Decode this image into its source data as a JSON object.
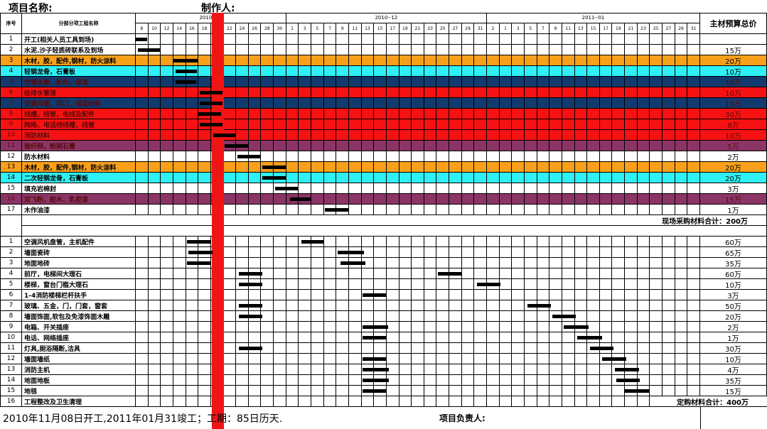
{
  "header": {
    "project_name_label": "项目名称:",
    "author_label": "制作人:",
    "seq_label": "序号",
    "task_label": "分部分项工程名称",
    "price_label": "主材预算总价"
  },
  "months": [
    {
      "label": "2010--11",
      "cols": 12
    },
    {
      "label": "2010--12",
      "cols": 16
    },
    {
      "label": "2011--01",
      "cols": 17
    }
  ],
  "days": [
    "8",
    "10",
    "12",
    "14",
    "16",
    "18",
    "20",
    "22",
    "24",
    "26",
    "28",
    "30",
    "1",
    "3",
    "5",
    "7",
    "9",
    "11",
    "13",
    "15",
    "17",
    "19",
    "21",
    "23",
    "25",
    "27",
    "29",
    "31",
    "2",
    "1",
    "3",
    "5",
    "7",
    "9",
    "11",
    "13",
    "15",
    "17",
    "19",
    "21",
    "23",
    "25",
    "27",
    "29",
    "31"
  ],
  "today_col_day": "20",
  "colors": {
    "white": "#ffffff",
    "orange": "#f9a01b",
    "cyan": "#2ef0f5",
    "navy": "#123a6e",
    "red": "#f61212",
    "purple": "#8c3466",
    "today": "#f01515"
  },
  "section1": [
    {
      "seq": "1",
      "name": "开工(相关人员工具到场)",
      "color": "white",
      "price": "",
      "bars": [
        [
          0,
          0.9
        ]
      ]
    },
    {
      "seq": "2",
      "name": "水泥.沙子轻质砖联系及到场",
      "color": "white",
      "price": "15万",
      "bars": [
        [
          0.15,
          2
        ]
      ]
    },
    {
      "seq": "3",
      "name": "木材，胶，配件,钢材，防火涂料",
      "color": "orange",
      "price": "20万",
      "bars": [
        [
          3,
          5
        ]
      ]
    },
    {
      "seq": "4",
      "name": "轻钢龙骨，石膏板",
      "color": "cyan",
      "price": "10万",
      "bars": [
        [
          3.2,
          4.9
        ]
      ]
    },
    {
      "seq": "5",
      "name": "空调水管，配件，保温",
      "color": "navy",
      "price": "16万",
      "bars": [
        [
          3.2,
          4.8
        ]
      ]
    },
    {
      "seq": "6",
      "name": "给排水管道",
      "color": "red",
      "price": "10万",
      "bars": [
        [
          5.1,
          6.9
        ]
      ]
    },
    {
      "seq": "7",
      "name": "空调风管，风口，保温材料",
      "color": "navy",
      "price": "15万",
      "bars": [
        [
          5.1,
          6.9
        ]
      ]
    },
    {
      "seq": "8",
      "name": "线槽，线管，电线及配件",
      "color": "red",
      "price": "30万",
      "bars": [
        [
          5,
          6.8
        ]
      ]
    },
    {
      "seq": "9",
      "name": "网络、电话线线槽，线管",
      "color": "red",
      "price": "8万",
      "bars": [
        [
          5.1,
          6.9
        ]
      ]
    },
    {
      "seq": "10",
      "name": "消防材料",
      "color": "red",
      "price": "10万",
      "bars": [
        [
          6.2,
          8
        ]
      ]
    },
    {
      "seq": "11",
      "name": "玻纤网，粉刷石膏",
      "color": "purple",
      "price": "5万",
      "bars": [
        [
          7.1,
          9
        ]
      ]
    },
    {
      "seq": "12",
      "name": "防水材料",
      "color": "white",
      "price": "2万",
      "bars": [
        [
          8.1,
          10
        ]
      ]
    },
    {
      "seq": "13",
      "name": "木材，胶，配件,钢材，防火涂料",
      "color": "orange",
      "price": "20万",
      "bars": [
        [
          10.1,
          12
        ]
      ]
    },
    {
      "seq": "14",
      "name": "二次轻钢龙骨，石膏板",
      "color": "cyan",
      "price": "20万",
      "bars": [
        [
          10.1,
          12
        ]
      ]
    },
    {
      "seq": "15",
      "name": "填充岩棉封",
      "color": "white",
      "price": "3万",
      "bars": [
        [
          11.1,
          13
        ]
      ]
    },
    {
      "seq": "16",
      "name": "双飞粉，胶水、乳胶漆",
      "color": "purple",
      "price": "15万",
      "bars": [
        [
          12.3,
          14
        ]
      ]
    },
    {
      "seq": "17",
      "name": "木作油漆",
      "color": "white",
      "price": "1万",
      "bars": [
        [
          15.1,
          17
        ]
      ]
    }
  ],
  "section1_total": "现场采购材料合计：200万",
  "section2": [
    {
      "seq": "1",
      "name": "空调风机盘管，主机配件",
      "price": "60万",
      "bars": [
        [
          4.1,
          6
        ],
        [
          13.2,
          15
        ]
      ]
    },
    {
      "seq": "2",
      "name": "墙面瓷砖",
      "price": "65万",
      "bars": [
        [
          4.2,
          6.1
        ],
        [
          16.1,
          18.2
        ]
      ]
    },
    {
      "seq": "3",
      "name": "地面地砖",
      "price": "35万",
      "bars": [
        [
          4.1,
          6
        ],
        [
          16.3,
          18.3
        ]
      ]
    },
    {
      "seq": "4",
      "name": "前厅，电梯间大理石",
      "price": "60万",
      "bars": [
        [
          8.2,
          10.1
        ],
        [
          24.1,
          26
        ]
      ]
    },
    {
      "seq": "5",
      "name": "楼梯，窗台门槛大理石",
      "price": "10万",
      "bars": [
        [
          8.2,
          10.1
        ],
        [
          27.2,
          29.1
        ]
      ]
    },
    {
      "seq": "6",
      "name": "1-4消防楼梯栏杆扶手",
      "price": "3万",
      "bars": [
        [
          18.1,
          20
        ]
      ]
    },
    {
      "seq": "7",
      "name": "玻璃、五金，门，门套，窗套",
      "price": "50万",
      "bars": [
        [
          8.2,
          10.1
        ],
        [
          31.2,
          33.1
        ]
      ]
    },
    {
      "seq": "8",
      "name": "墙面饰面,软包及免漆饰面木雕",
      "price": "20万",
      "bars": [
        [
          8.2,
          10.1
        ],
        [
          33.2,
          35.1
        ]
      ]
    },
    {
      "seq": "9",
      "name": "电箱、开关插座",
      "price": "2万",
      "bars": [
        [
          18.1,
          20.1
        ],
        [
          34.1,
          36.1
        ]
      ]
    },
    {
      "seq": "10",
      "name": "电话、网络插座",
      "price": "1万",
      "bars": [
        [
          18.1,
          20
        ],
        [
          35.2,
          37.2
        ]
      ]
    },
    {
      "seq": "11",
      "name": "灯具,厕浴隔断,洁具",
      "price": "30万",
      "bars": [
        [
          8.2,
          10.1
        ],
        [
          36.2,
          38.1
        ]
      ]
    },
    {
      "seq": "12",
      "name": "墙面墙纸",
      "price": "10万",
      "bars": [
        [
          18.1,
          20
        ],
        [
          37.2,
          39.1
        ]
      ]
    },
    {
      "seq": "13",
      "name": "消防主机",
      "price": "4万",
      "bars": [
        [
          18.1,
          20.2
        ],
        [
          38.2,
          40.1
        ]
      ]
    },
    {
      "seq": "14",
      "name": "地面地板",
      "price": "35万",
      "bars": [
        [
          18.1,
          20.2
        ],
        [
          38.3,
          40.2
        ]
      ]
    },
    {
      "seq": "15",
      "name": "地毯",
      "price": "15万",
      "bars": [
        [
          18.1,
          20
        ],
        [
          39,
          41
        ]
      ]
    },
    {
      "seq": "16",
      "name": "工程整改及卫生清理",
      "price": "",
      "bars": []
    }
  ],
  "section2_total": "定购材料合计：400万",
  "footer": {
    "schedule": "2010年11月08日开工,2011年01月31竣工；工期：85日历天.",
    "manager_label": "项目负责人:"
  }
}
